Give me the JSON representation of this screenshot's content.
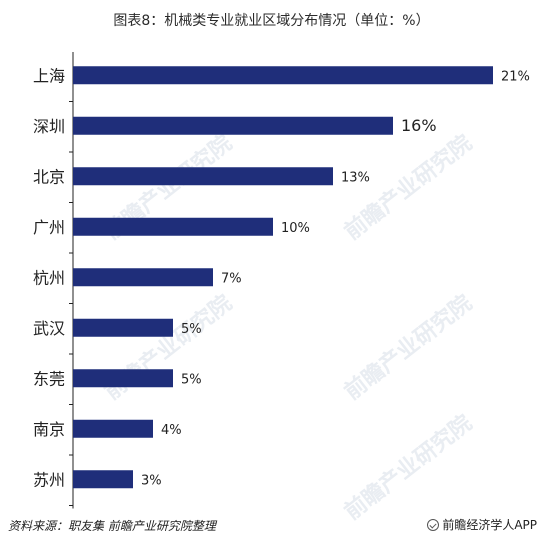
{
  "header": {
    "title": "图表8：机械类专业就业区域分布情况（单位：%）"
  },
  "chart_data": {
    "type": "bar",
    "orientation": "horizontal",
    "categories": [
      "上海",
      "深圳",
      "北京",
      "广州",
      "杭州",
      "武汉",
      "东莞",
      "南京",
      "苏州"
    ],
    "values": [
      21,
      16,
      13,
      10,
      7,
      5,
      5,
      4,
      3
    ],
    "value_labels": [
      "21%",
      "16%",
      "13%",
      "10%",
      "7%",
      "5%",
      "5%",
      "4%",
      "3%"
    ],
    "unit": "%",
    "title": "图表8：机械类专业就业区域分布情况（单位：%）",
    "xlabel": "",
    "ylabel": "",
    "xlim": [
      0,
      21
    ],
    "grid": false,
    "legend": "none",
    "bar_color": "#1f2e7a"
  },
  "footer": {
    "source": "资料来源：职友集  前瞻产业研究院整理",
    "brand": "前瞻经济学人APP"
  },
  "watermark": {
    "text": "前瞻产业研究院"
  },
  "colors": {
    "bar": "#1f2e7a",
    "axis": "#222222",
    "text": "#222222"
  }
}
